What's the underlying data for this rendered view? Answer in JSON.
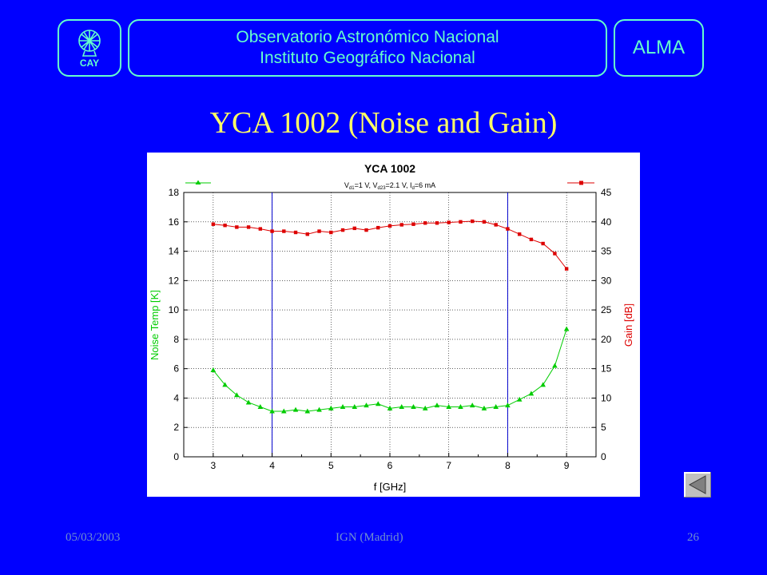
{
  "header": {
    "logo_label": "CAY",
    "institution_line1": "Observatorio Astronómico Nacional",
    "institution_line2": "Instituto Geográfico Nacional",
    "alma_label": "ALMA",
    "logo_icon": "dome-globe-icon"
  },
  "slide_title": "YCA 1002 (Noise and Gain)",
  "footer": {
    "date": "05/03/2003",
    "center": "IGN (Madrid)",
    "page": "26"
  },
  "nav": {
    "icon": "previous-triangle-icon"
  },
  "colors": {
    "background": "#0000ff",
    "accent": "#66ffcc",
    "title": "#ffff66",
    "noise_series": "#00cc00",
    "gain_series": "#dd0000",
    "band_lines": "#0000cc"
  },
  "chart_data": {
    "type": "line",
    "title": "YCA 1002",
    "subtitle_parts": {
      "t1": "V",
      "s1": "d1",
      "t2": "=1 V, V",
      "s2": "d23",
      "t3": "=2.1 V, I",
      "s3": "d",
      "t4": "=6 mA"
    },
    "xlabel": "f [GHz]",
    "ylabel_left": "Noise Temp [K]",
    "ylabel_right": "Gain [dB]",
    "xlim": [
      2.5,
      9.5
    ],
    "ylim_left": [
      0,
      18
    ],
    "ylim_right": [
      0,
      45
    ],
    "xticks": [
      3,
      4,
      5,
      6,
      7,
      8,
      9
    ],
    "yticks_left": [
      0,
      2,
      4,
      6,
      8,
      10,
      12,
      14,
      16,
      18
    ],
    "yticks_right": [
      0,
      5,
      10,
      15,
      20,
      25,
      30,
      35,
      40,
      45
    ],
    "vertical_band_lines": [
      4,
      8
    ],
    "grid": true,
    "x": [
      3.0,
      3.2,
      3.4,
      3.6,
      3.8,
      4.0,
      4.2,
      4.4,
      4.6,
      4.8,
      5.0,
      5.2,
      5.4,
      5.6,
      5.8,
      6.0,
      6.2,
      6.4,
      6.6,
      6.8,
      7.0,
      7.2,
      7.4,
      7.6,
      7.8,
      8.0,
      8.2,
      8.4,
      8.6,
      8.8,
      9.0
    ],
    "series": [
      {
        "axis": "left",
        "marker": "triangle",
        "values": [
          5.9,
          4.9,
          4.2,
          3.7,
          3.4,
          3.1,
          3.1,
          3.2,
          3.1,
          3.2,
          3.3,
          3.4,
          3.4,
          3.5,
          3.6,
          3.3,
          3.4,
          3.4,
          3.3,
          3.5,
          3.4,
          3.4,
          3.5,
          3.3,
          3.4,
          3.5,
          3.9,
          4.3,
          4.9,
          6.2,
          8.7
        ]
      },
      {
        "axis": "right",
        "marker": "square",
        "values": [
          39.6,
          39.4,
          39.1,
          39.1,
          38.8,
          38.4,
          38.4,
          38.2,
          37.9,
          38.4,
          38.2,
          38.6,
          38.9,
          38.6,
          39.0,
          39.3,
          39.5,
          39.6,
          39.8,
          39.8,
          39.9,
          40.0,
          40.1,
          40.0,
          39.5,
          38.8,
          37.9,
          37.0,
          36.3,
          34.6,
          32.0
        ]
      }
    ]
  }
}
